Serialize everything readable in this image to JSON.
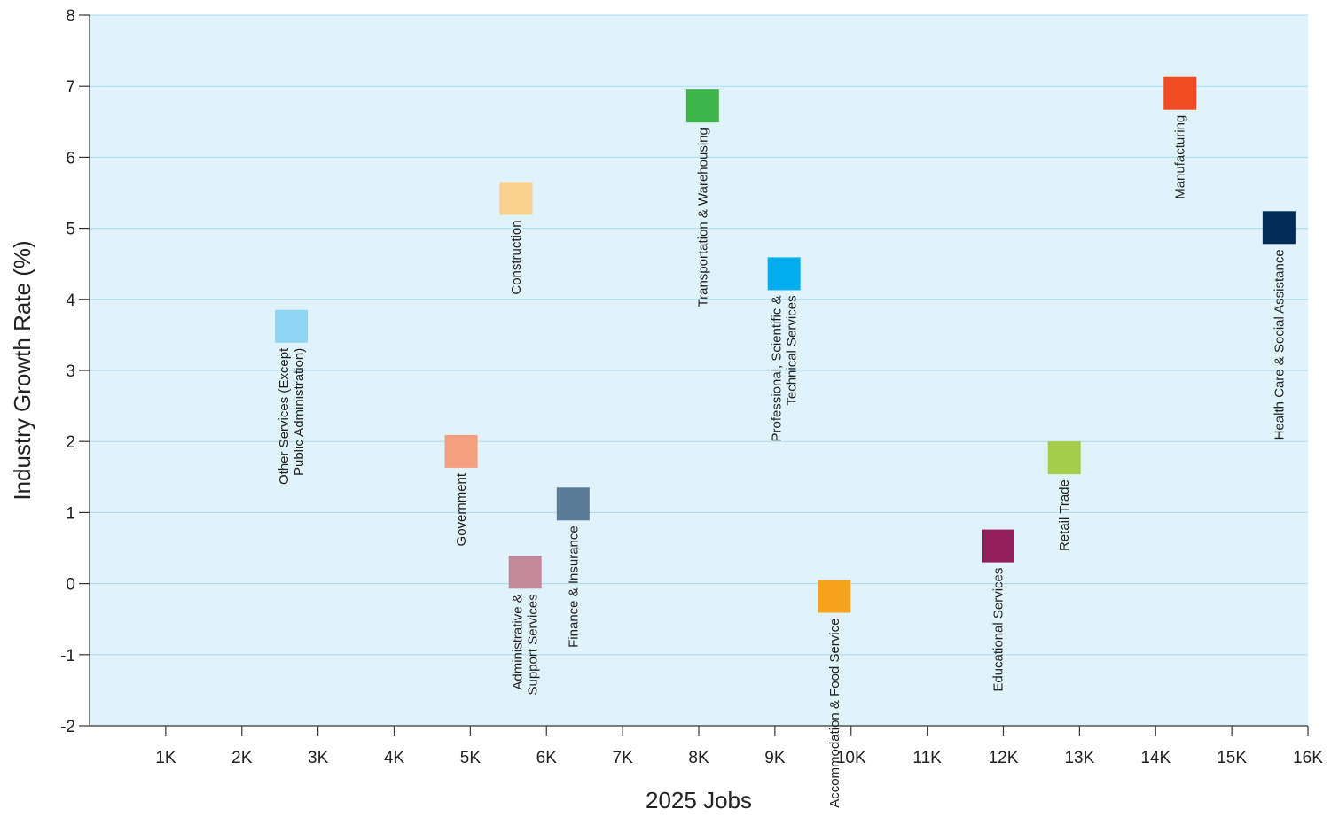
{
  "chart_data": {
    "type": "scatter",
    "title": "",
    "xlabel": "2025 Jobs",
    "ylabel": "Industry Growth Rate (%)",
    "xlim": [
      0,
      16000
    ],
    "ylim": [
      -2,
      8
    ],
    "x_ticks": [
      {
        "value": 1000,
        "label": "1K"
      },
      {
        "value": 2000,
        "label": "2K"
      },
      {
        "value": 3000,
        "label": "3K"
      },
      {
        "value": 4000,
        "label": "4K"
      },
      {
        "value": 5000,
        "label": "5K"
      },
      {
        "value": 6000,
        "label": "6K"
      },
      {
        "value": 7000,
        "label": "7K"
      },
      {
        "value": 8000,
        "label": "8K"
      },
      {
        "value": 9000,
        "label": "9K"
      },
      {
        "value": 10000,
        "label": "10K"
      },
      {
        "value": 11000,
        "label": "11K"
      },
      {
        "value": 12000,
        "label": "12K"
      },
      {
        "value": 13000,
        "label": "13K"
      },
      {
        "value": 14000,
        "label": "14K"
      },
      {
        "value": 15000,
        "label": "15K"
      },
      {
        "value": 16000,
        "label": "16K"
      }
    ],
    "y_ticks": [
      {
        "value": -2,
        "label": "-2"
      },
      {
        "value": -1,
        "label": "-1"
      },
      {
        "value": 0,
        "label": "0"
      },
      {
        "value": 1,
        "label": "1"
      },
      {
        "value": 2,
        "label": "2"
      },
      {
        "value": 3,
        "label": "3"
      },
      {
        "value": 4,
        "label": "4"
      },
      {
        "value": 5,
        "label": "5"
      },
      {
        "value": 6,
        "label": "6"
      },
      {
        "value": 7,
        "label": "7"
      },
      {
        "value": 8,
        "label": "8"
      }
    ],
    "grid": true,
    "plot_background": "#e0f2fa",
    "grid_color": "#a8dcf0",
    "points": [
      {
        "label_lines": [
          "Other Services (Except",
          "Public Administration)"
        ],
        "x": 2650,
        "y": 3.62,
        "color": "#8fd6f4"
      },
      {
        "label_lines": [
          "Government"
        ],
        "x": 4880,
        "y": 1.86,
        "color": "#f4a07e"
      },
      {
        "label_lines": [
          "Construction"
        ],
        "x": 5600,
        "y": 5.42,
        "color": "#f9d18f"
      },
      {
        "label_lines": [
          "Administrative &",
          "Support Services"
        ],
        "x": 5720,
        "y": 0.16,
        "color": "#c2899a"
      },
      {
        "label_lines": [
          "Finance & Insurance"
        ],
        "x": 6350,
        "y": 1.12,
        "color": "#5a7b98"
      },
      {
        "label_lines": [
          "Transportation & Warehousing"
        ],
        "x": 8050,
        "y": 6.72,
        "color": "#3bb54a"
      },
      {
        "label_lines": [
          "Professional, Scientific &",
          "Technical Services"
        ],
        "x": 9120,
        "y": 4.36,
        "color": "#00aeef"
      },
      {
        "label_lines": [
          "Accommodation & Food Service"
        ],
        "x": 9780,
        "y": -0.18,
        "color": "#f5a21c"
      },
      {
        "label_lines": [
          "Educational Services"
        ],
        "x": 11930,
        "y": 0.53,
        "color": "#921f5b"
      },
      {
        "label_lines": [
          "Retail Trade"
        ],
        "x": 12800,
        "y": 1.77,
        "color": "#a5cd4a"
      },
      {
        "label_lines": [
          "Manufacturing"
        ],
        "x": 14320,
        "y": 6.9,
        "color": "#f04c23"
      },
      {
        "label_lines": [
          "Health Care & Social Assistance"
        ],
        "x": 15620,
        "y": 5.01,
        "color": "#002d58"
      }
    ]
  }
}
